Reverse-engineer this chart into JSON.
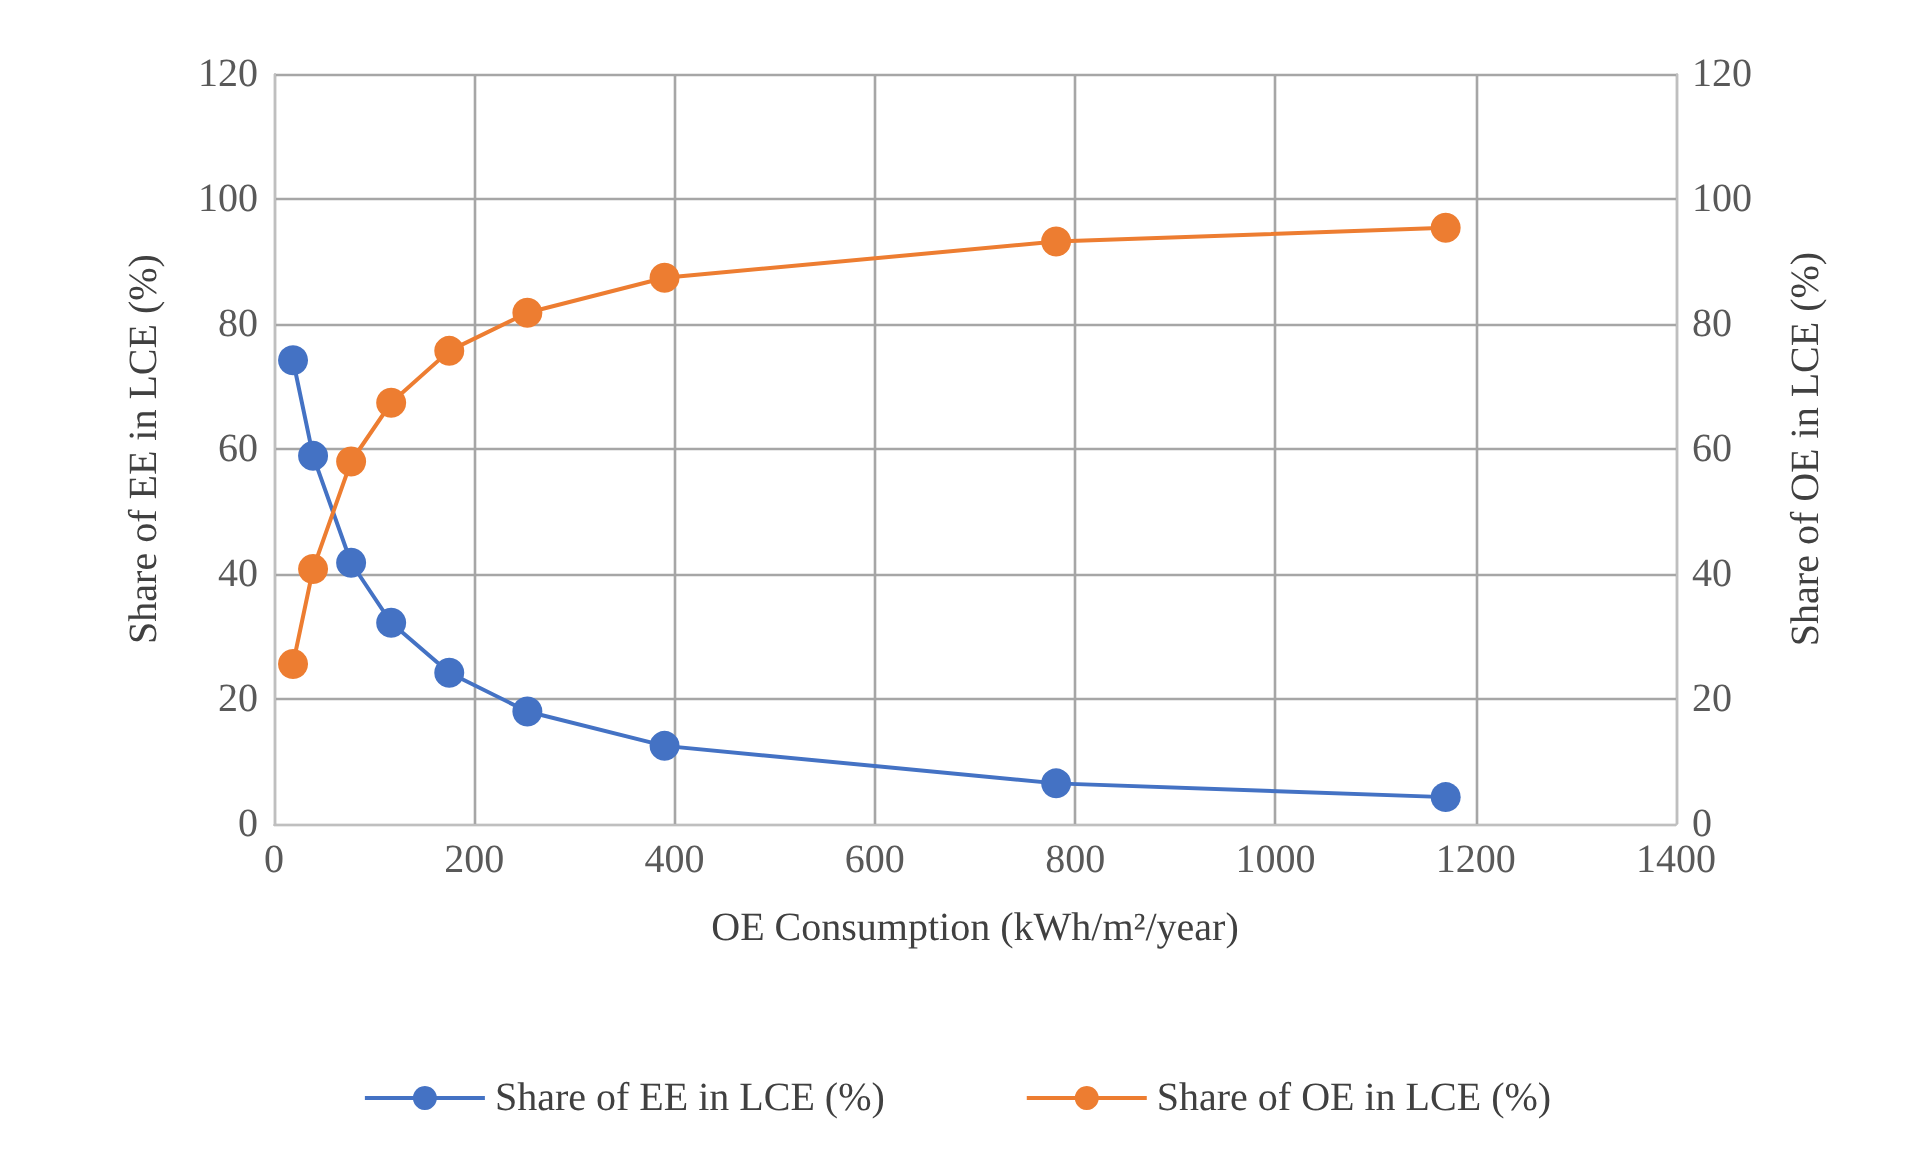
{
  "chart_data": {
    "type": "line",
    "xlabel": "OE Consumption (kWh/m²/year)",
    "ylabel": "Share of EE in LCE (%)",
    "y2label": "Share of OE in LCE (%)",
    "x": [
      19,
      39,
      77,
      117,
      175,
      253,
      390,
      781,
      1170
    ],
    "series": [
      {
        "name": "Share of EE in LCE (%)",
        "color": "#4472c4",
        "values": [
          74.2,
          58.9,
          41.8,
          32.2,
          24.2,
          18.0,
          12.5,
          6.5,
          4.3
        ]
      },
      {
        "name": "Share of OE in LCE (%)",
        "color": "#ed7d31",
        "values": [
          25.6,
          40.8,
          58.0,
          67.4,
          75.7,
          81.8,
          87.4,
          93.2,
          95.4
        ]
      }
    ],
    "xlim": [
      0,
      1400
    ],
    "xticks": [
      0,
      200,
      400,
      600,
      800,
      1000,
      1200,
      1400
    ],
    "ylim": [
      0,
      120
    ],
    "yticks": [
      0,
      20,
      40,
      60,
      80,
      100,
      120
    ],
    "y2lim": [
      0,
      120
    ],
    "y2ticks": [
      0,
      20,
      40,
      60,
      80,
      100,
      120
    ],
    "grid": true,
    "legend": "bottom",
    "marker": "circle",
    "line_style": "solid"
  }
}
